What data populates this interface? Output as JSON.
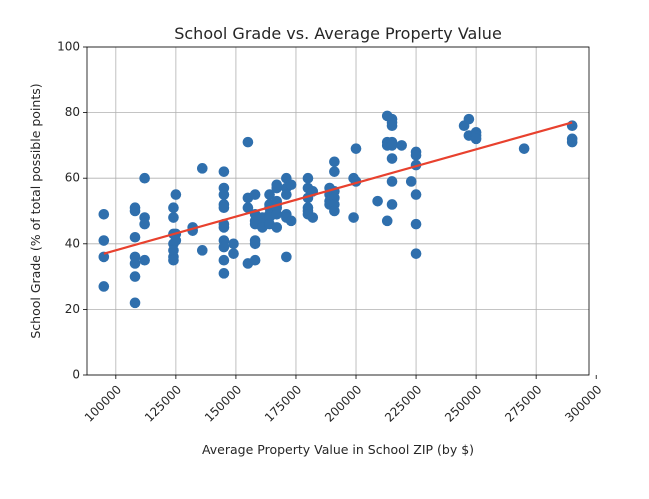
{
  "chart_data": {
    "type": "scatter",
    "title": "School Grade vs. Average Property Value",
    "xlabel": "Average Property Value in School ZIP (by $)",
    "ylabel": "School Grade (% of total possible points)",
    "xlim": [
      88000,
      297000
    ],
    "ylim": [
      0,
      100
    ],
    "x_ticks": [
      100000,
      125000,
      150000,
      175000,
      200000,
      225000,
      250000,
      275000,
      300000
    ],
    "y_ticks": [
      0,
      20,
      40,
      60,
      80,
      100
    ],
    "x_tick_labels": [
      "100000",
      "125000",
      "150000",
      "175000",
      "200000",
      "225000",
      "250000",
      "275000",
      "300000"
    ],
    "y_tick_labels": [
      "0",
      "20",
      "40",
      "60",
      "80",
      "100"
    ],
    "grid": true,
    "point_color": "#2f6fad",
    "line_color": "#e8412e",
    "series": [
      {
        "type": "scatter",
        "points": [
          [
            95000,
            49
          ],
          [
            95000,
            41
          ],
          [
            95000,
            36
          ],
          [
            95000,
            27
          ],
          [
            108000,
            22
          ],
          [
            108000,
            30
          ],
          [
            108000,
            34
          ],
          [
            108000,
            36
          ],
          [
            108000,
            42
          ],
          [
            108000,
            50
          ],
          [
            108000,
            51
          ],
          [
            112000,
            60
          ],
          [
            112000,
            48
          ],
          [
            112000,
            46
          ],
          [
            112000,
            35
          ],
          [
            124000,
            51
          ],
          [
            124000,
            48
          ],
          [
            124000,
            43
          ],
          [
            124000,
            40
          ],
          [
            124000,
            38
          ],
          [
            124000,
            36
          ],
          [
            124000,
            35
          ],
          [
            125000,
            55
          ],
          [
            125000,
            43
          ],
          [
            125000,
            41
          ],
          [
            132000,
            45
          ],
          [
            132000,
            44
          ],
          [
            136000,
            63
          ],
          [
            136000,
            38
          ],
          [
            145000,
            62
          ],
          [
            145000,
            57
          ],
          [
            145000,
            55
          ],
          [
            145000,
            52
          ],
          [
            145000,
            51
          ],
          [
            145000,
            46
          ],
          [
            145000,
            45
          ],
          [
            145000,
            41
          ],
          [
            145000,
            39
          ],
          [
            145000,
            35
          ],
          [
            145000,
            31
          ],
          [
            149000,
            40
          ],
          [
            149000,
            37
          ],
          [
            155000,
            71
          ],
          [
            155000,
            54
          ],
          [
            155000,
            51
          ],
          [
            155000,
            34
          ],
          [
            158000,
            55
          ],
          [
            158000,
            49
          ],
          [
            158000,
            47
          ],
          [
            158000,
            46
          ],
          [
            158000,
            41
          ],
          [
            158000,
            40
          ],
          [
            158000,
            35
          ],
          [
            161000,
            48
          ],
          [
            161000,
            46
          ],
          [
            161000,
            45
          ],
          [
            164000,
            55
          ],
          [
            164000,
            52
          ],
          [
            164000,
            51
          ],
          [
            164000,
            49
          ],
          [
            164000,
            48
          ],
          [
            164000,
            46
          ],
          [
            167000,
            58
          ],
          [
            167000,
            57
          ],
          [
            167000,
            53
          ],
          [
            167000,
            52
          ],
          [
            167000,
            51
          ],
          [
            167000,
            49
          ],
          [
            167000,
            45
          ],
          [
            171000,
            60
          ],
          [
            171000,
            57
          ],
          [
            171000,
            55
          ],
          [
            171000,
            49
          ],
          [
            171000,
            48
          ],
          [
            171000,
            36
          ],
          [
            173000,
            58
          ],
          [
            173000,
            47
          ],
          [
            180000,
            60
          ],
          [
            180000,
            57
          ],
          [
            180000,
            54
          ],
          [
            180000,
            51
          ],
          [
            180000,
            50
          ],
          [
            180000,
            49
          ],
          [
            182000,
            56
          ],
          [
            182000,
            48
          ],
          [
            189000,
            57
          ],
          [
            189000,
            55
          ],
          [
            189000,
            53
          ],
          [
            189000,
            52
          ],
          [
            191000,
            65
          ],
          [
            191000,
            62
          ],
          [
            191000,
            56
          ],
          [
            191000,
            54
          ],
          [
            191000,
            52
          ],
          [
            191000,
            50
          ],
          [
            199000,
            60
          ],
          [
            199000,
            48
          ],
          [
            200000,
            69
          ],
          [
            200000,
            59
          ],
          [
            209000,
            53
          ],
          [
            213000,
            79
          ],
          [
            213000,
            71
          ],
          [
            213000,
            70
          ],
          [
            213000,
            47
          ],
          [
            215000,
            78
          ],
          [
            215000,
            77
          ],
          [
            215000,
            76
          ],
          [
            215000,
            71
          ],
          [
            215000,
            70
          ],
          [
            215000,
            66
          ],
          [
            215000,
            59
          ],
          [
            215000,
            52
          ],
          [
            219000,
            70
          ],
          [
            223000,
            59
          ],
          [
            225000,
            68
          ],
          [
            225000,
            67
          ],
          [
            225000,
            64
          ],
          [
            225000,
            55
          ],
          [
            225000,
            46
          ],
          [
            225000,
            37
          ],
          [
            245000,
            76
          ],
          [
            247000,
            78
          ],
          [
            247000,
            73
          ],
          [
            250000,
            74
          ],
          [
            250000,
            73
          ],
          [
            250000,
            72
          ],
          [
            270000,
            69
          ],
          [
            290000,
            76
          ],
          [
            290000,
            72
          ],
          [
            290000,
            71
          ]
        ]
      },
      {
        "type": "line",
        "points": [
          [
            95000,
            37
          ],
          [
            290000,
            77
          ]
        ]
      }
    ]
  }
}
